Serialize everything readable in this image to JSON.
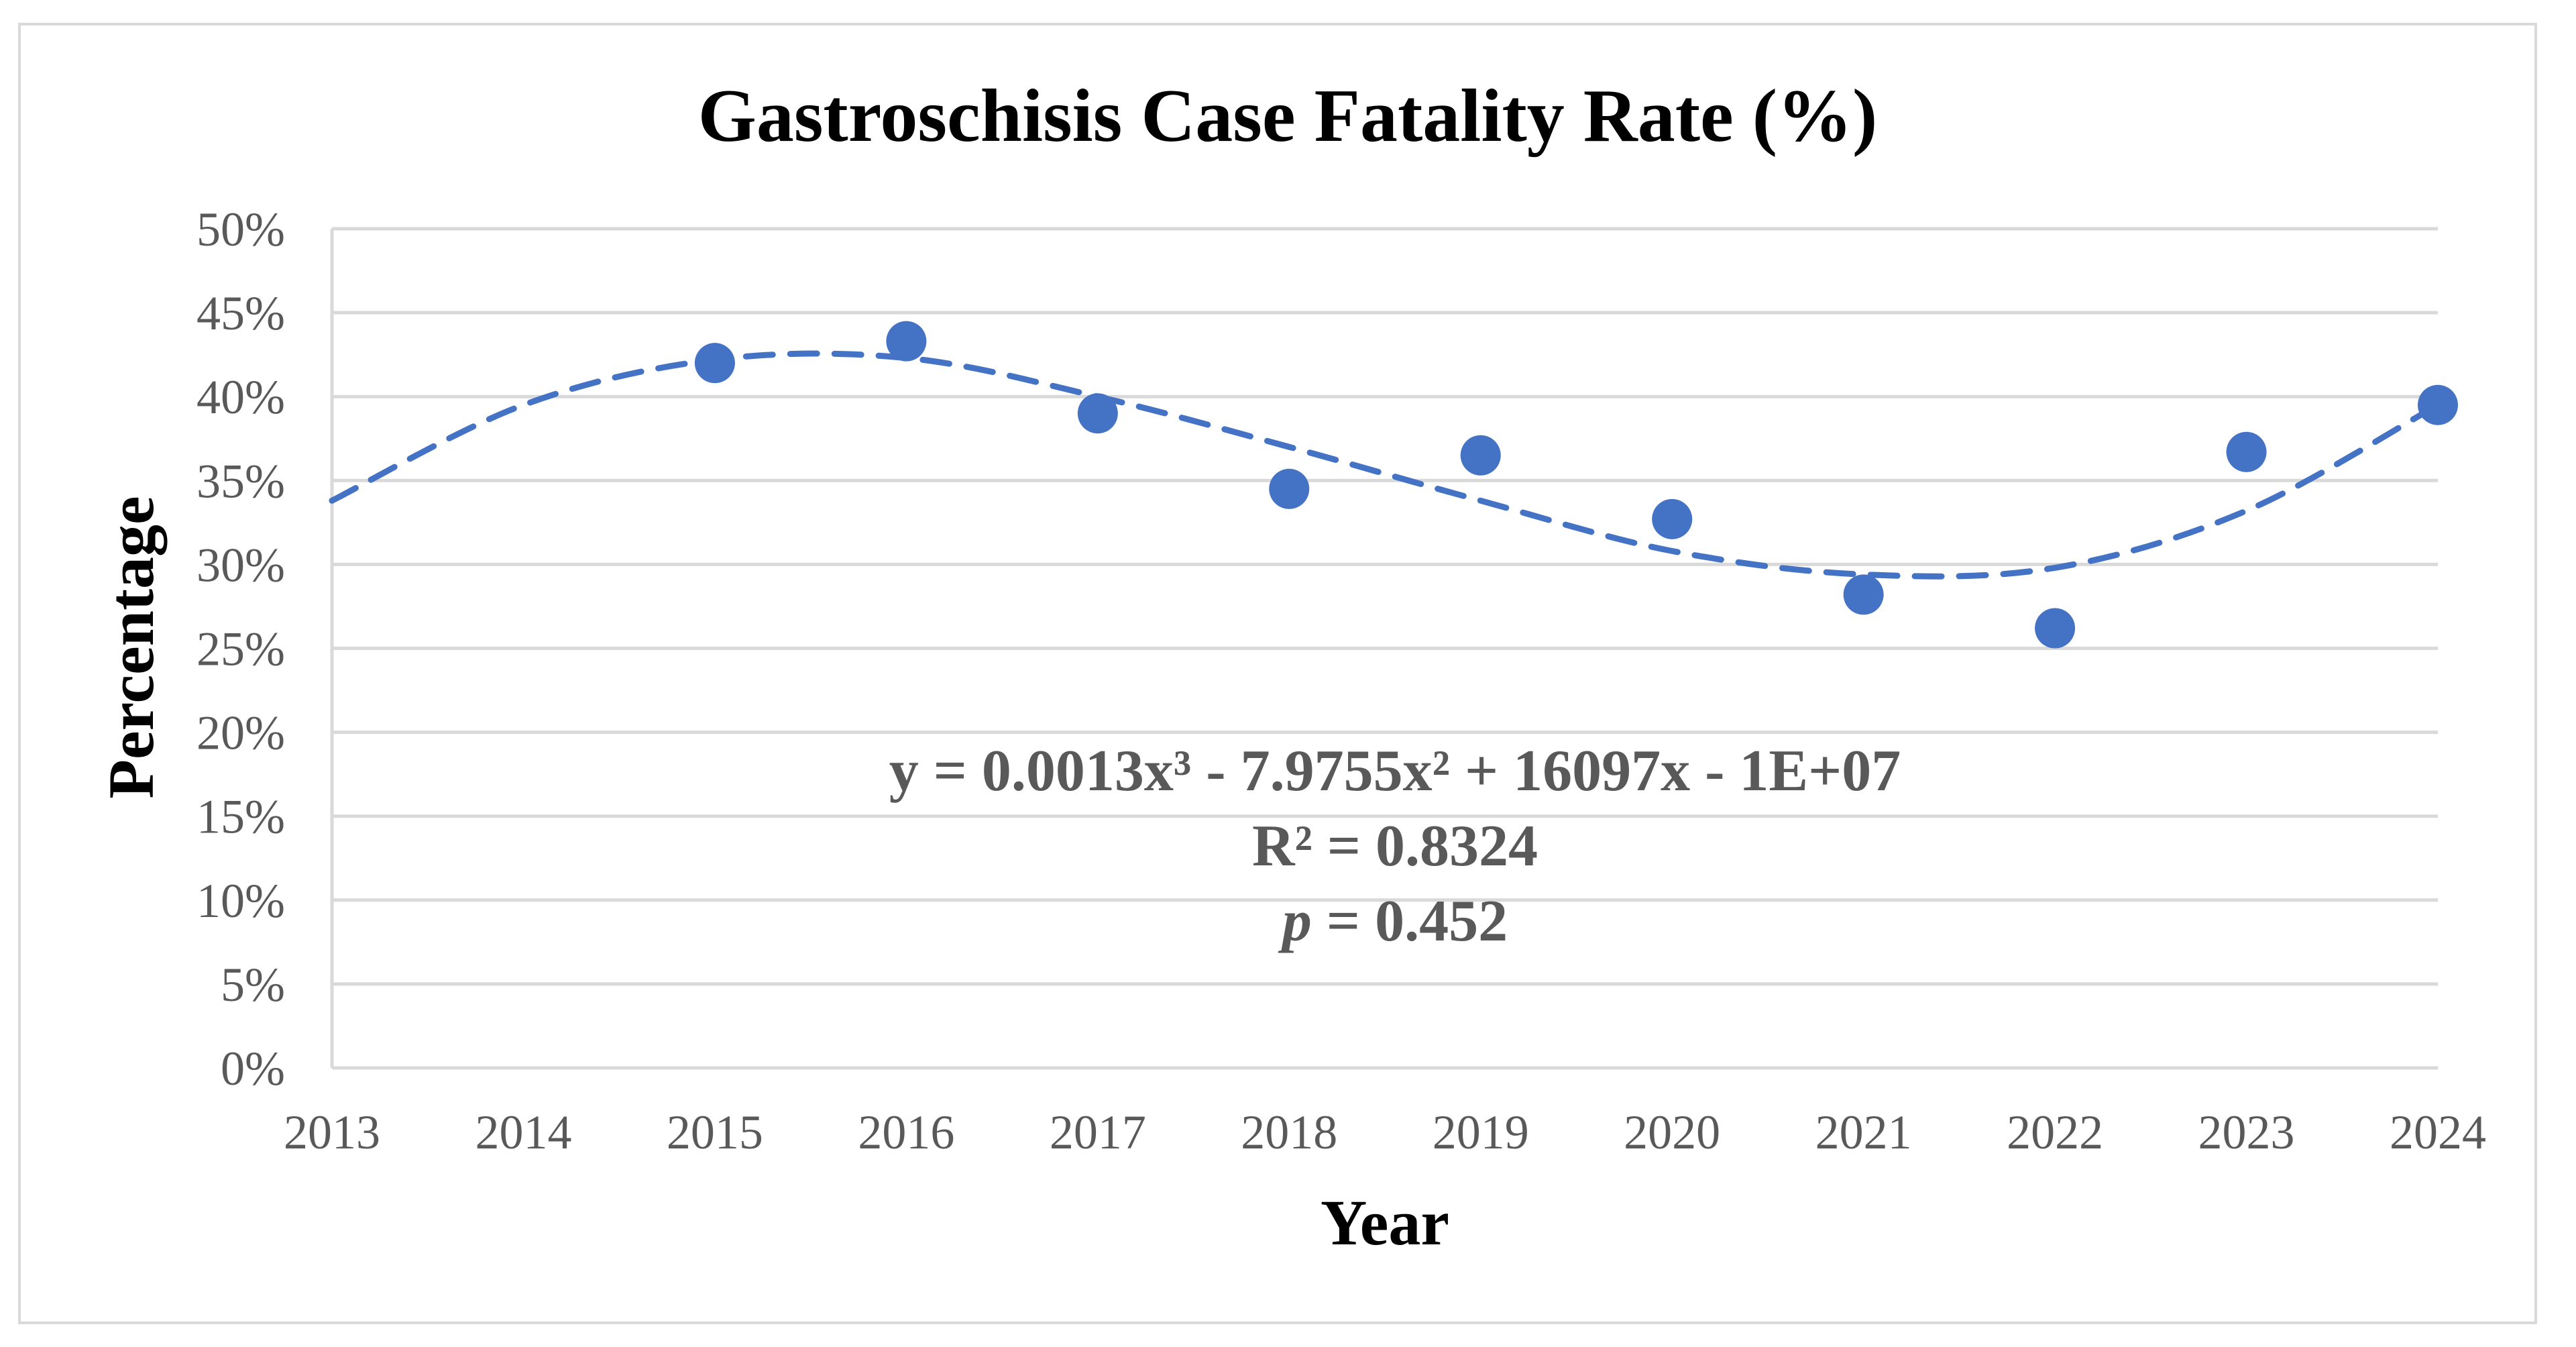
{
  "chart_data": {
    "type": "scatter",
    "title": "Gastroschisis Case Fatality Rate (%)",
    "xlabel": "Year",
    "ylabel": "Percentage",
    "xlim": [
      2013,
      2024
    ],
    "ylim": [
      0,
      50
    ],
    "x_ticks": [
      "2013",
      "2014",
      "2015",
      "2016",
      "2017",
      "2018",
      "2019",
      "2020",
      "2021",
      "2022",
      "2023",
      "2024"
    ],
    "y_ticks": [
      "0%",
      "5%",
      "10%",
      "15%",
      "20%",
      "25%",
      "30%",
      "35%",
      "40%",
      "45%",
      "50%"
    ],
    "grid": true,
    "series": [
      {
        "name": "Case Fatality Rate",
        "x": [
          2015,
          2016,
          2017,
          2018,
          2019,
          2020,
          2021,
          2022,
          2023,
          2024
        ],
        "values": [
          42.0,
          43.3,
          39.0,
          34.5,
          36.5,
          32.7,
          28.2,
          26.2,
          36.7,
          39.5
        ]
      }
    ],
    "trendline": {
      "type": "polynomial",
      "order": 3,
      "x": [
        2013,
        2014,
        2015,
        2016,
        2017,
        2018,
        2019,
        2020,
        2021,
        2022,
        2023,
        2024
      ],
      "values": [
        33.8,
        39.5,
        42.2,
        42.3,
        40.0,
        37.0,
        33.8,
        30.8,
        29.4,
        29.8,
        33.2,
        39.5
      ]
    },
    "annotations": {
      "equation": "y = 0.0013x³ - 7.9755x² + 16097x - 1E+07",
      "r_squared": "R² = 0.8324",
      "p_label": "p",
      "p_value": " = 0.452"
    },
    "colors": {
      "marker": "#4472c4",
      "trendline": "#4472c4",
      "grid": "#d9d9d9",
      "tick_text": "#595959"
    }
  }
}
